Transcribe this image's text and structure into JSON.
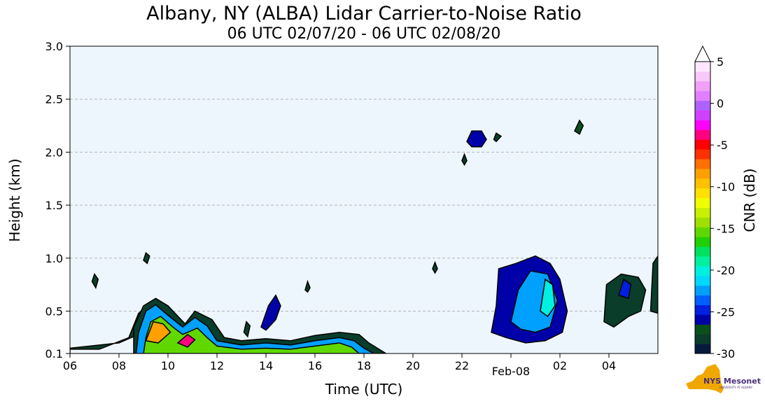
{
  "title": "Albany, NY (ALBA) Lidar Carrier-to-Noise Ratio",
  "subtitle": "06 UTC 02/07/20 - 06 UTC 02/08/20",
  "logo": {
    "text": "NYS Mesonet",
    "subtext": "UNIVERSITY AT ALBANY"
  },
  "chart_data": {
    "type": "heatmap",
    "xlabel": "Time (UTC)",
    "ylabel": "Height (km)",
    "colorbar_label": "CNR (dB)",
    "x_unit": "hours since 06 UTC 02/07/20",
    "xlim": [
      0,
      24
    ],
    "ylim": [
      0.1,
      3.0
    ],
    "x_ticks": [
      {
        "v": 0,
        "label": "06"
      },
      {
        "v": 2,
        "label": "08"
      },
      {
        "v": 4,
        "label": "10"
      },
      {
        "v": 6,
        "label": "12"
      },
      {
        "v": 8,
        "label": "14"
      },
      {
        "v": 10,
        "label": "16"
      },
      {
        "v": 12,
        "label": "18"
      },
      {
        "v": 14,
        "label": "20"
      },
      {
        "v": 16,
        "label": "22"
      },
      {
        "v": 18,
        "label": "Feb-08"
      },
      {
        "v": 20,
        "label": "02"
      },
      {
        "v": 22,
        "label": "04"
      }
    ],
    "y_ticks": [
      {
        "v": 0.1,
        "label": "0.1"
      },
      {
        "v": 0.5,
        "label": "0.5"
      },
      {
        "v": 1.0,
        "label": "1.0"
      },
      {
        "v": 1.5,
        "label": "1.5"
      },
      {
        "v": 2.0,
        "label": "2.0"
      },
      {
        "v": 2.5,
        "label": "2.5"
      },
      {
        "v": 3.0,
        "label": "3.0"
      }
    ],
    "grid": "y-dashed",
    "colorbar": {
      "min": -30,
      "max": 5,
      "extend": "max",
      "ticks": [
        {
          "v": 5,
          "label": "5"
        },
        {
          "v": 0,
          "label": "0"
        },
        {
          "v": -5,
          "label": "-5"
        },
        {
          "v": -10,
          "label": "-10"
        },
        {
          "v": -15,
          "label": "-15"
        },
        {
          "v": -20,
          "label": "-20"
        },
        {
          "v": -25,
          "label": "-25"
        },
        {
          "v": -30,
          "label": "-30"
        }
      ],
      "colors": [
        "#061a3e",
        "#0a3d2a",
        "#0a4f1c",
        "#0000a8",
        "#0020e0",
        "#0060ff",
        "#00a0ff",
        "#00d8ff",
        "#00f0e0",
        "#00f0a0",
        "#00e060",
        "#20d000",
        "#60d800",
        "#a0e000",
        "#c8f000",
        "#f0ff00",
        "#ffe000",
        "#ffc000",
        "#ffa000",
        "#ff7000",
        "#ff3000",
        "#ff0000",
        "#ff0080",
        "#ff00ff",
        "#d040ff",
        "#b060ff",
        "#e080ff",
        "#f0a0f8",
        "#f8c8f8",
        "#ffe8ff"
      ]
    },
    "regions": [
      {
        "cnr": -28,
        "points": [
          [
            0,
            0.1
          ],
          [
            0,
            0.15
          ],
          [
            2,
            0.2
          ],
          [
            3,
            0.3
          ],
          [
            3.6,
            0.38
          ],
          [
            3.2,
            0.55
          ],
          [
            2.8,
            0.48
          ],
          [
            2.4,
            0.25
          ],
          [
            1.2,
            0.14
          ],
          [
            0,
            0.14
          ]
        ]
      },
      {
        "cnr": -28,
        "points": [
          [
            2.6,
            0.1
          ],
          [
            2.6,
            0.35
          ],
          [
            3,
            0.55
          ],
          [
            3.5,
            0.62
          ],
          [
            4,
            0.55
          ],
          [
            4.7,
            0.38
          ],
          [
            5.1,
            0.5
          ],
          [
            5.8,
            0.42
          ],
          [
            6.3,
            0.25
          ],
          [
            7,
            0.22
          ],
          [
            8,
            0.24
          ],
          [
            9,
            0.22
          ],
          [
            10,
            0.27
          ],
          [
            11,
            0.3
          ],
          [
            11.8,
            0.28
          ],
          [
            12.2,
            0.2
          ],
          [
            12.9,
            0.1
          ]
        ]
      },
      {
        "cnr": -22,
        "points": [
          [
            2.7,
            0.1
          ],
          [
            2.8,
            0.3
          ],
          [
            3.1,
            0.5
          ],
          [
            3.5,
            0.56
          ],
          [
            3.9,
            0.48
          ],
          [
            4.6,
            0.35
          ],
          [
            5.1,
            0.44
          ],
          [
            5.6,
            0.36
          ],
          [
            6,
            0.22
          ],
          [
            7,
            0.18
          ],
          [
            8,
            0.2
          ],
          [
            9,
            0.18
          ],
          [
            10,
            0.22
          ],
          [
            11,
            0.25
          ],
          [
            11.6,
            0.22
          ],
          [
            12,
            0.15
          ],
          [
            12.4,
            0.1
          ]
        ]
      },
      {
        "cnr": -15,
        "points": [
          [
            3,
            0.1
          ],
          [
            3.1,
            0.25
          ],
          [
            3.3,
            0.4
          ],
          [
            3.7,
            0.45
          ],
          [
            4.2,
            0.35
          ],
          [
            4.6,
            0.28
          ],
          [
            5.2,
            0.34
          ],
          [
            5.6,
            0.25
          ],
          [
            6,
            0.17
          ],
          [
            7,
            0.14
          ],
          [
            8,
            0.15
          ],
          [
            9,
            0.14
          ],
          [
            10,
            0.17
          ],
          [
            11,
            0.2
          ],
          [
            11.5,
            0.16
          ],
          [
            11.8,
            0.1
          ]
        ]
      },
      {
        "cnr": -9,
        "points": [
          [
            3.1,
            0.22
          ],
          [
            3.4,
            0.4
          ],
          [
            3.8,
            0.38
          ],
          [
            4.1,
            0.3
          ],
          [
            3.6,
            0.2
          ]
        ]
      },
      {
        "cnr": -4,
        "points": [
          [
            4.4,
            0.2
          ],
          [
            4.8,
            0.28
          ],
          [
            5.1,
            0.23
          ],
          [
            4.8,
            0.16
          ]
        ]
      },
      {
        "cnr": -26,
        "points": [
          [
            17.2,
            0.3
          ],
          [
            17.4,
            0.55
          ],
          [
            17.5,
            0.9
          ],
          [
            18.2,
            0.95
          ],
          [
            19,
            1.02
          ],
          [
            19.6,
            0.95
          ],
          [
            20,
            0.8
          ],
          [
            20.3,
            0.5
          ],
          [
            20.1,
            0.3
          ],
          [
            19.4,
            0.22
          ],
          [
            18.6,
            0.2
          ],
          [
            17.8,
            0.25
          ]
        ]
      },
      {
        "cnr": -23,
        "points": [
          [
            18,
            0.4
          ],
          [
            18.3,
            0.7
          ],
          [
            18.8,
            0.88
          ],
          [
            19.5,
            0.85
          ],
          [
            19.9,
            0.6
          ],
          [
            19.6,
            0.35
          ],
          [
            19,
            0.3
          ],
          [
            18.4,
            0.33
          ]
        ]
      },
      {
        "cnr": -20,
        "points": [
          [
            19.2,
            0.5
          ],
          [
            19.4,
            0.8
          ],
          [
            19.7,
            0.75
          ],
          [
            19.8,
            0.55
          ],
          [
            19.5,
            0.45
          ]
        ]
      },
      {
        "cnr": -28,
        "points": [
          [
            21.8,
            0.4
          ],
          [
            21.9,
            0.75
          ],
          [
            22.5,
            0.85
          ],
          [
            23.2,
            0.82
          ],
          [
            23.5,
            0.7
          ],
          [
            23.3,
            0.5
          ],
          [
            22.8,
            0.45
          ],
          [
            22.2,
            0.35
          ]
        ]
      },
      {
        "cnr": -25,
        "points": [
          [
            22.4,
            0.65
          ],
          [
            22.6,
            0.8
          ],
          [
            22.9,
            0.75
          ],
          [
            22.8,
            0.62
          ]
        ]
      },
      {
        "cnr": -28,
        "points": [
          [
            23.7,
            0.5
          ],
          [
            23.8,
            0.95
          ],
          [
            24,
            1.02
          ],
          [
            24,
            0.48
          ]
        ]
      },
      {
        "cnr": -26,
        "points": [
          [
            16.2,
            2.1
          ],
          [
            16.4,
            2.2
          ],
          [
            16.8,
            2.2
          ],
          [
            17,
            2.12
          ],
          [
            16.8,
            2.05
          ],
          [
            16.4,
            2.05
          ]
        ]
      },
      {
        "cnr": -28,
        "points": [
          [
            16.0,
            1.92
          ],
          [
            16.1,
            1.98
          ],
          [
            16.2,
            1.92
          ],
          [
            16.1,
            1.88
          ]
        ]
      },
      {
        "cnr": -28,
        "points": [
          [
            17.3,
            2.12
          ],
          [
            17.4,
            2.18
          ],
          [
            17.6,
            2.15
          ],
          [
            17.4,
            2.1
          ]
        ]
      },
      {
        "cnr": -27,
        "points": [
          [
            20.6,
            2.2
          ],
          [
            20.8,
            2.3
          ],
          [
            20.95,
            2.25
          ],
          [
            20.8,
            2.17
          ]
        ]
      },
      {
        "cnr": -28,
        "points": [
          [
            3.0,
            0.98
          ],
          [
            3.1,
            1.05
          ],
          [
            3.25,
            1.02
          ],
          [
            3.15,
            0.95
          ]
        ]
      },
      {
        "cnr": -28,
        "points": [
          [
            0.9,
            0.78
          ],
          [
            1.0,
            0.85
          ],
          [
            1.15,
            0.8
          ],
          [
            1.05,
            0.72
          ]
        ]
      },
      {
        "cnr": -26,
        "points": [
          [
            7.8,
            0.35
          ],
          [
            8.1,
            0.55
          ],
          [
            8.4,
            0.65
          ],
          [
            8.6,
            0.55
          ],
          [
            8.4,
            0.42
          ],
          [
            8.0,
            0.32
          ]
        ]
      },
      {
        "cnr": -28,
        "points": [
          [
            9.6,
            0.7
          ],
          [
            9.7,
            0.78
          ],
          [
            9.8,
            0.72
          ],
          [
            9.7,
            0.68
          ]
        ]
      },
      {
        "cnr": -28,
        "points": [
          [
            14.8,
            0.9
          ],
          [
            14.9,
            0.96
          ],
          [
            15.0,
            0.9
          ],
          [
            14.9,
            0.86
          ]
        ]
      },
      {
        "cnr": -28,
        "points": [
          [
            7.1,
            0.3
          ],
          [
            7.2,
            0.4
          ],
          [
            7.35,
            0.36
          ],
          [
            7.25,
            0.26
          ]
        ]
      }
    ]
  }
}
